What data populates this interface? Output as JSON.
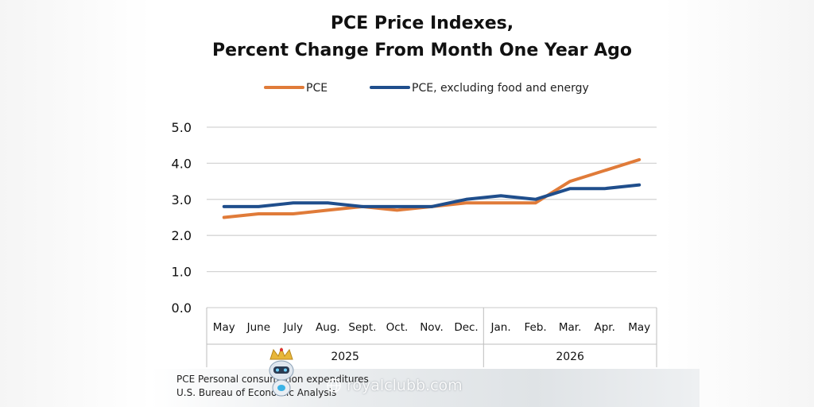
{
  "chart_data": {
    "type": "line",
    "title_lines": [
      "PCE Price Indexes,",
      "Percent Change From Month One Year Ago"
    ],
    "categories": [
      "May",
      "June",
      "July",
      "Aug.",
      "Sept.",
      "Oct.",
      "Nov.",
      "Dec.",
      "Jan.",
      "Feb.",
      "Mar.",
      "Apr.",
      "May"
    ],
    "year_groups": [
      {
        "label": "2025",
        "start_index": 0,
        "end_index": 7
      },
      {
        "label": "2026",
        "start_index": 8,
        "end_index": 12
      }
    ],
    "y_ticks": [
      "5.0",
      "4.0",
      "3.0",
      "2.0",
      "1.0",
      "0.0"
    ],
    "ylim": [
      0,
      5
    ],
    "grid": true,
    "legend_placement": "top",
    "series": [
      {
        "name": "PCE",
        "color": "#e07b39",
        "values": [
          2.5,
          2.6,
          2.6,
          2.7,
          2.8,
          2.7,
          2.8,
          2.9,
          2.9,
          2.9,
          3.5,
          3.8,
          4.1
        ]
      },
      {
        "name": "PCE, excluding food and energy",
        "color": "#1f4e8c",
        "values": [
          2.8,
          2.8,
          2.9,
          2.9,
          2.8,
          2.8,
          2.8,
          3.0,
          3.1,
          3.0,
          3.3,
          3.3,
          3.4
        ]
      }
    ]
  },
  "footer": {
    "source_line_1": "PCE Personal consumption expenditures",
    "source_line_2": "U.S. Bureau of Economic Analysis",
    "watermark": "royalclubb.com",
    "watermark_icon": "globe-icon",
    "mascot_icon": "crowned-robot-mascot-icon"
  }
}
